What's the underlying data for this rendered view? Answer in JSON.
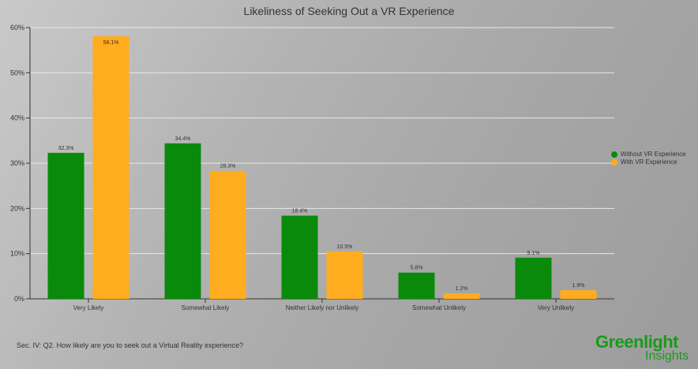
{
  "chart_data": {
    "type": "bar",
    "title": "Likeliness of Seeking Out a VR Experience",
    "categories": [
      "Very Likely",
      "Somewhat Likely",
      "Neither Likely nor Unlikely",
      "Somewhat Unlikely",
      "Very Unlikely"
    ],
    "series": [
      {
        "name": "Without VR Experience",
        "color": "#0a8a0a",
        "values": [
          32.3,
          34.4,
          18.4,
          5.8,
          9.1
        ],
        "labels": [
          "32.3%",
          "34.4%",
          "18.4%",
          "5.8%",
          "9.1%"
        ]
      },
      {
        "name": "With VR Experience",
        "color": "#ffad1f",
        "values": [
          58.1,
          28.3,
          10.5,
          1.2,
          1.9
        ],
        "labels": [
          "58.1%",
          "28.3%",
          "10.5%",
          "1.2%",
          "1.9%"
        ]
      }
    ],
    "ylim": [
      0,
      60
    ],
    "yticks": [
      "0%",
      "10%",
      "20%",
      "30%",
      "40%",
      "50%",
      "60%"
    ],
    "grid": true,
    "legend": "right"
  },
  "footnote": "Sec. IV:  Q2. How likely are you to seek out a Virtual Reality experience?",
  "logo": {
    "line1": "Greenlight",
    "line2": "Insights"
  }
}
